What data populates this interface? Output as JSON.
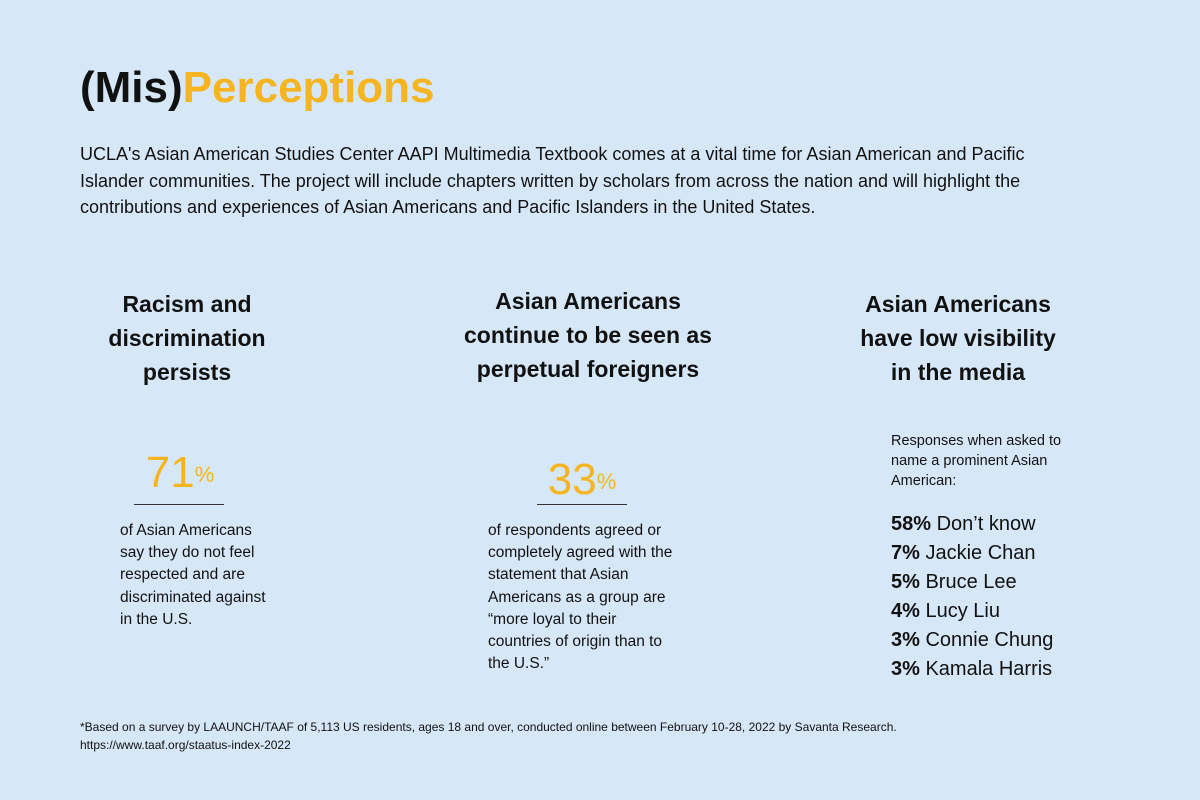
{
  "title": {
    "prefix": "(Mis)",
    "accent": "Perceptions"
  },
  "intro": "UCLA's Asian American Studies Center AAPI Multimedia Textbook comes at a vital time for Asian American and Pacific Islander communities. The project will include chapters written by scholars from across the nation and will highlight the contributions and experiences of Asian Americans and Pacific Islanders in the United States.",
  "columns": [
    {
      "heading": "Racism and discrimination persists",
      "stat_value": "71",
      "stat_unit": "%",
      "description": "of Asian Americans say they do not feel respected and are discriminated against in the U.S."
    },
    {
      "heading": "Asian Americans continue to be seen as perpetual foreigners",
      "stat_value": "33",
      "stat_unit": "%",
      "description": "of respondents agreed or completely agreed with the statement that Asian Americans as a group are “more loyal to their countries of origin than to the U.S.”"
    },
    {
      "heading": "Asian Americans have low visibility in the media",
      "prompt": "Responses when asked to name a prominent Asian American:",
      "responses": [
        {
          "pct": "58%",
          "name": "Don’t know"
        },
        {
          "pct": "7%",
          "name": "Jackie Chan"
        },
        {
          "pct": "5%",
          "name": "Bruce Lee"
        },
        {
          "pct": "4%",
          "name": "Lucy Liu"
        },
        {
          "pct": "3%",
          "name": "Connie Chung"
        },
        {
          "pct": "3%",
          "name": "Kamala Harris"
        }
      ]
    }
  ],
  "footnote": {
    "text": "*Based on a survey by LAAUNCH/TAAF of 5,113 US residents, ages 18 and over, conducted online between February 10-28, 2022 by Savanta Research.",
    "url": "https://www.taaf.org/staatus-index-2022"
  },
  "colors": {
    "background": "#d6e8f8",
    "accent": "#f6b520",
    "text": "#111111"
  }
}
